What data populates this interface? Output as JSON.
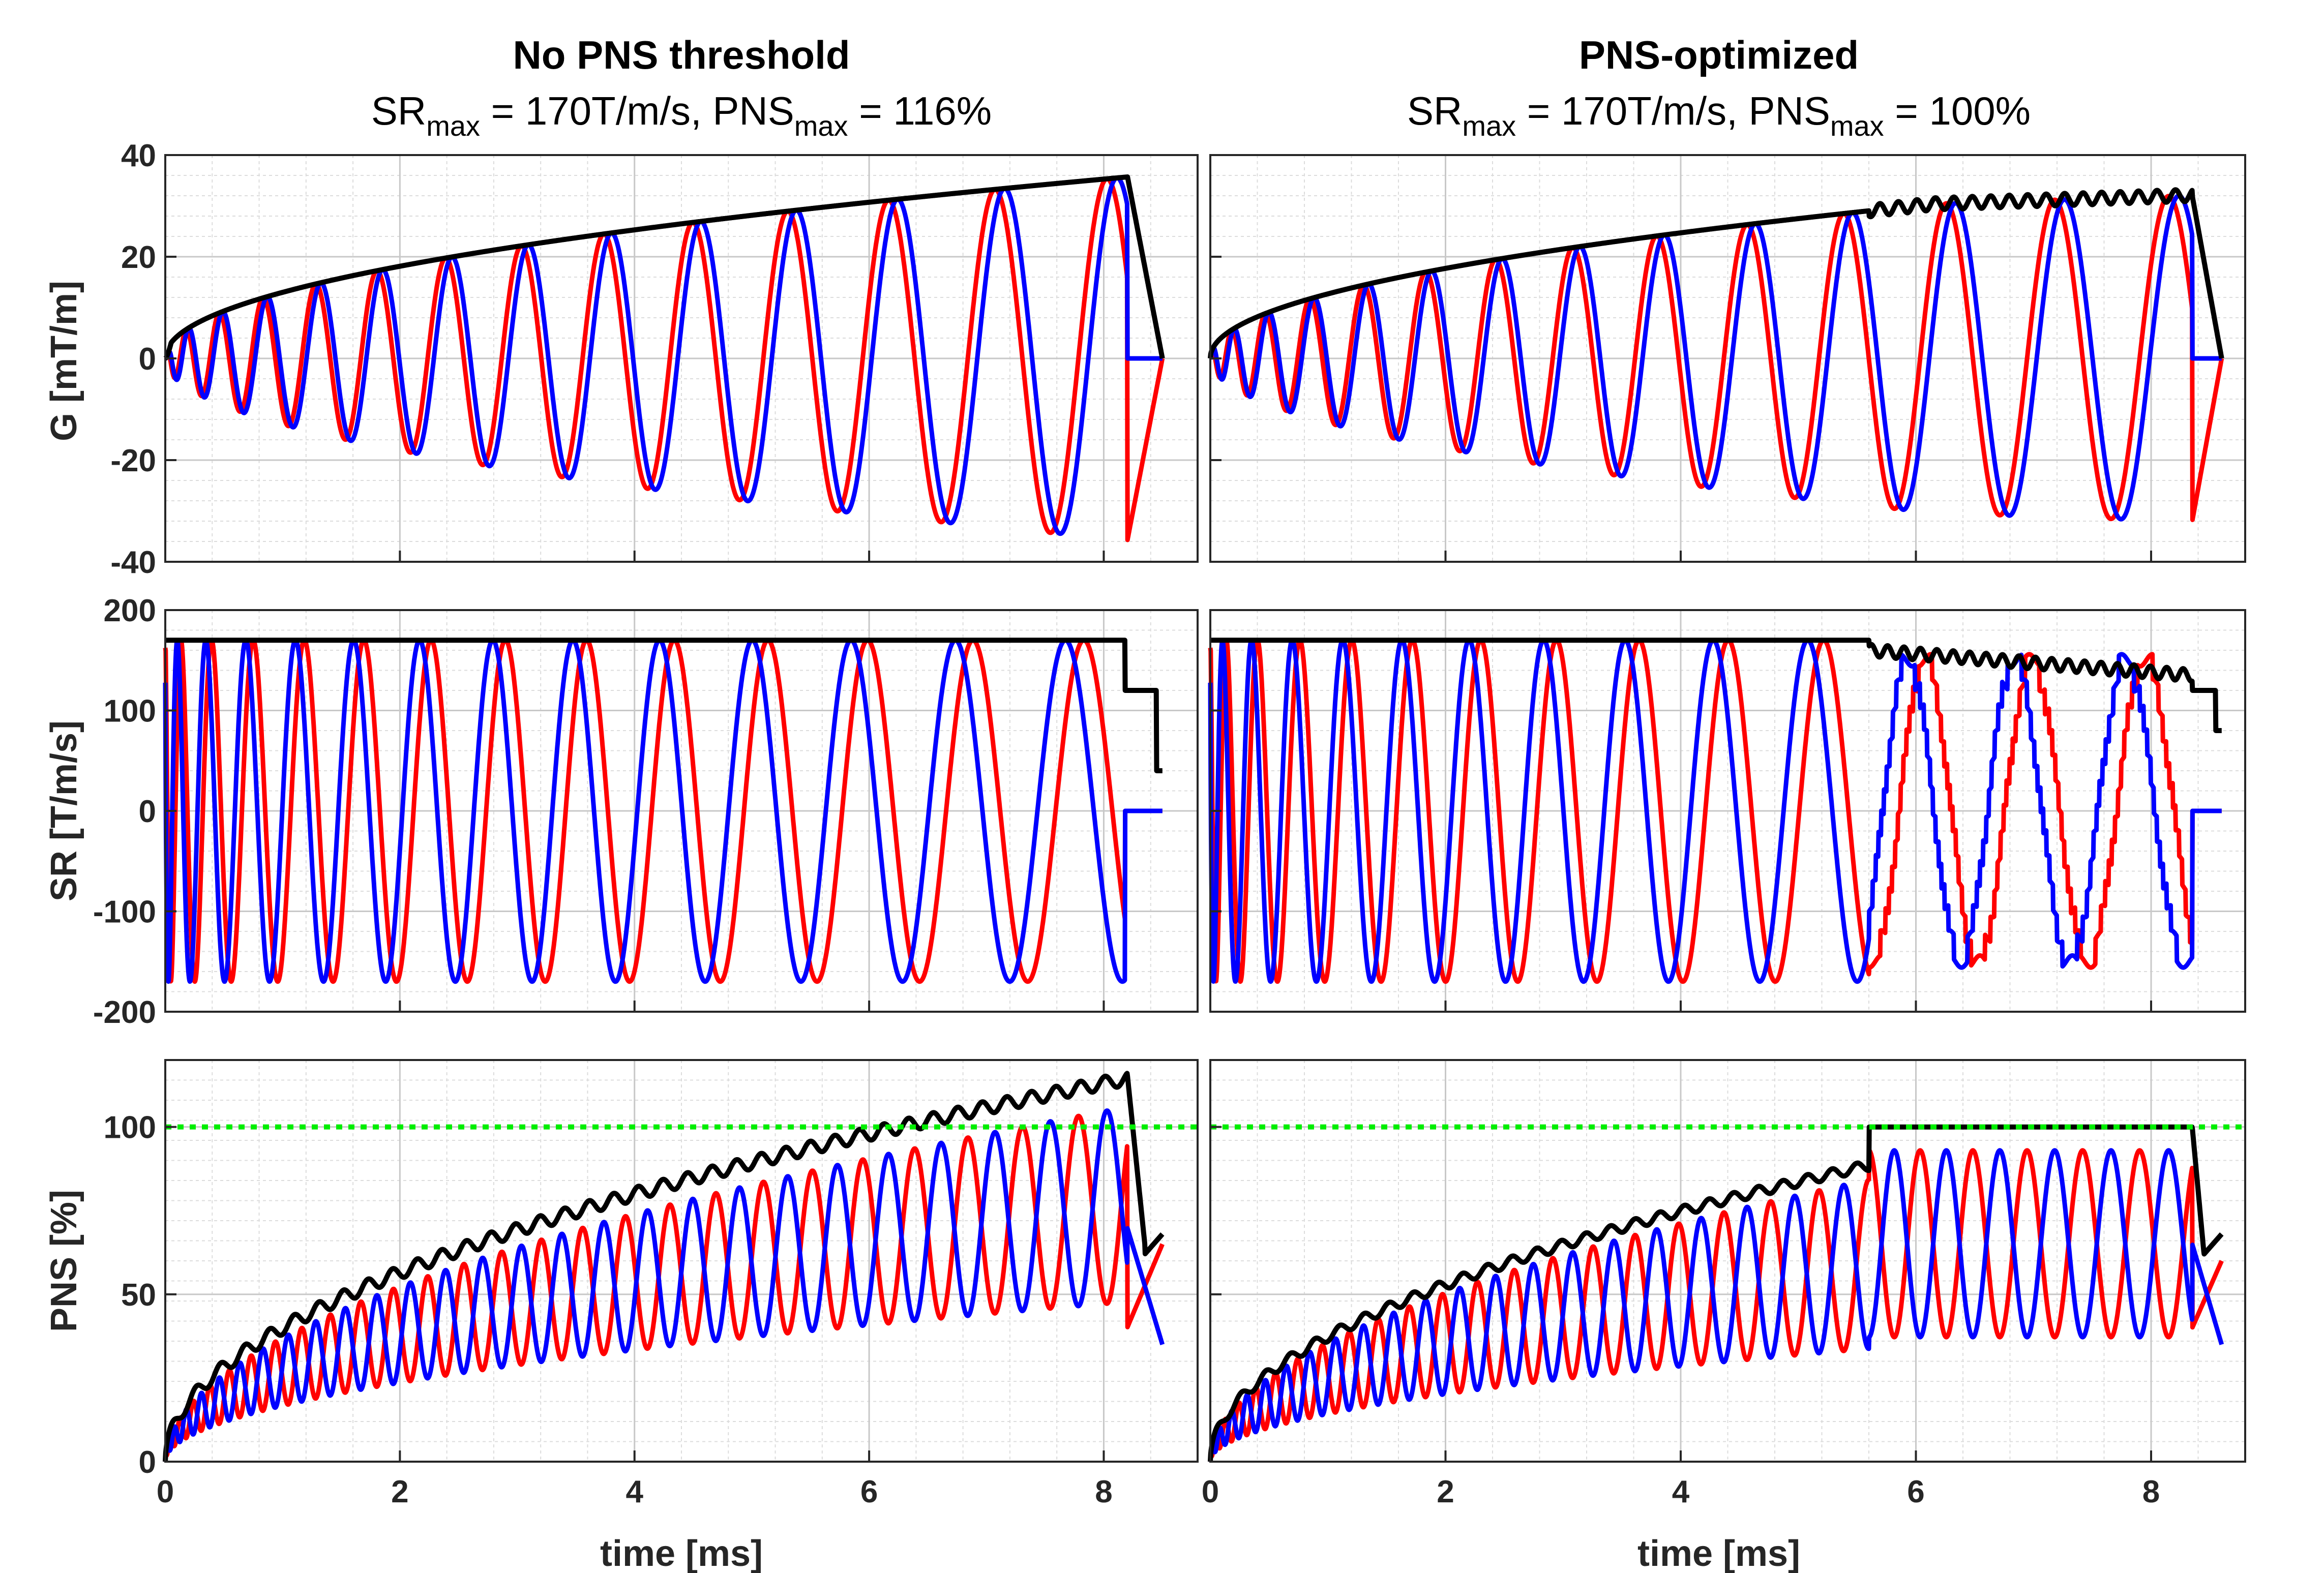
{
  "colors": {
    "red": "#ff0000",
    "blue": "#0000ff",
    "black": "#000000",
    "green": "#00ee00",
    "grid": "#dcdcdc",
    "axis": "#262626"
  },
  "columns": [
    {
      "title": "No PNS threshold",
      "sr_prefix": "SR",
      "sr_sub": "max",
      "sr_text": " = 170T/m/s, PNS",
      "pns_sub": "max",
      "pns_text": " = 116%"
    },
    {
      "title": "PNS-optimized",
      "sr_prefix": "SR",
      "sr_sub": "max",
      "sr_text": " = 170T/m/s, PNS",
      "pns_sub": "max",
      "pns_text": " = 100%"
    }
  ],
  "chart_data": [
    {
      "id": "G",
      "type": "line",
      "ylabel": "G [mT/m]",
      "xlim": [
        0,
        8.8
      ],
      "ylim": [
        -40,
        40
      ],
      "xticks": [
        "0",
        "2",
        "4",
        "6",
        "8"
      ],
      "yticks": [
        "-40",
        "-20",
        "0",
        "20",
        "40"
      ],
      "ytick_values": [
        -40,
        -20,
        0,
        20,
        40
      ],
      "series": [
        "red",
        "blue",
        "magnitude (black)"
      ],
      "left": {
        "end_ms": 8.2,
        "peak_mT_per_m": 36,
        "red_peak_times_ms": [
          0.2,
          0.55,
          1.0,
          1.6,
          2.2,
          2.9,
          3.6,
          4.4,
          5.2,
          6.1,
          7.1,
          8.2
        ]
      },
      "right": {
        "end_ms": 8.6,
        "peak_mT_per_m": 32,
        "plateau_from_ms": 5.6
      }
    },
    {
      "id": "SR",
      "type": "line",
      "ylabel": "SR [T/m/s]",
      "xlim": [
        0,
        8.8
      ],
      "ylim": [
        -200,
        200
      ],
      "xticks": [
        "0",
        "2",
        "4",
        "6",
        "8"
      ],
      "yticks": [
        "-200",
        "-100",
        "0",
        "100",
        "200"
      ],
      "ytick_values": [
        -200,
        -100,
        0,
        100,
        200
      ],
      "series": [
        "red",
        "blue",
        "magnitude (black)"
      ],
      "left": {
        "amplitude": 170,
        "tail_value": 120
      },
      "right": {
        "amplitude": 170,
        "reduced_from_ms": 5.6,
        "reduced_min": 130
      }
    },
    {
      "id": "PNS",
      "type": "line",
      "ylabel": "PNS [%]",
      "xlabel": "time [ms]",
      "xlim": [
        0,
        8.8
      ],
      "ylim": [
        0,
        120
      ],
      "xticks": [
        "0",
        "2",
        "4",
        "6",
        "8"
      ],
      "yticks": [
        "0",
        "50",
        "100"
      ],
      "ytick_values": [
        0,
        50,
        100
      ],
      "threshold": 100,
      "series": [
        "red",
        "blue",
        "total (black)",
        "threshold (green dotted)"
      ],
      "left": {
        "max_percent": 116
      },
      "right": {
        "max_percent": 100
      }
    }
  ]
}
